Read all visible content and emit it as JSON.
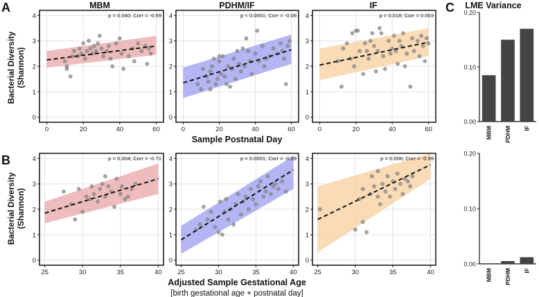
{
  "panel_labels": [
    "A",
    "B",
    "C"
  ],
  "column_titles": [
    "MBM",
    "PDHM/IF",
    "IF"
  ],
  "y_label_lines": [
    "Bacterial Diversity",
    "(Shannon)"
  ],
  "x_label_top": "Sample Postnatal Day",
  "x_label_bottom": "Adjusted Sample Gestational Age",
  "x_label_bottom_sub": "[birth gestational age + postnatal day]",
  "lme_title": "LME Variance",
  "colors": {
    "MBM": "#e8a6a6",
    "PDHM/IF": "#9c9cf0",
    "IF": "#f7cf9d",
    "bar": "#444444",
    "point": "#8a8a8a"
  },
  "chart_data": [
    {
      "type": "scatter",
      "row": "A",
      "group": "MBM",
      "title": "MBM",
      "annotation": "p = 0.040; Corr = -0.59",
      "xlabel": "Sample Postnatal Day",
      "ylabel": "Bacterial Diversity (Shannon)",
      "xlim": [
        -4,
        64
      ],
      "ylim": [
        -0.2,
        4.2
      ],
      "xticks": [
        0,
        20,
        40,
        60
      ],
      "yticks": [
        0,
        1,
        2,
        3,
        4
      ],
      "fit": {
        "x": [
          0,
          60
        ],
        "y": [
          2.25,
          2.8
        ]
      },
      "band": {
        "x": [
          0,
          60
        ],
        "lower": [
          1.95,
          2.45
        ],
        "upper": [
          2.6,
          3.2
        ]
      },
      "points": [
        [
          10,
          2.2
        ],
        [
          11,
          2.0
        ],
        [
          11,
          1.9
        ],
        [
          13,
          1.6
        ],
        [
          14,
          2.4
        ],
        [
          15,
          2.6
        ],
        [
          17,
          2.4
        ],
        [
          18,
          2.7
        ],
        [
          19,
          2.5
        ],
        [
          20,
          2.9
        ],
        [
          21,
          2.3
        ],
        [
          22,
          2.6
        ],
        [
          23,
          3.0
        ],
        [
          24,
          2.7
        ],
        [
          25,
          2.5
        ],
        [
          26,
          2.8
        ],
        [
          27,
          2.6
        ],
        [
          28,
          2.9
        ],
        [
          29,
          3.2
        ],
        [
          30,
          2.7
        ],
        [
          31,
          2.4
        ],
        [
          33,
          2.6
        ],
        [
          34,
          2.8
        ],
        [
          35,
          2.3
        ],
        [
          36,
          2.0
        ],
        [
          38,
          2.9
        ],
        [
          40,
          3.1
        ],
        [
          41,
          2.5
        ],
        [
          42,
          1.9
        ],
        [
          45,
          2.4
        ],
        [
          47,
          2.7
        ],
        [
          48,
          2.2
        ],
        [
          50,
          2.9
        ],
        [
          52,
          2.6
        ],
        [
          54,
          2.8
        ],
        [
          55,
          2.1
        ],
        [
          56,
          2.7
        ],
        [
          57,
          2.5
        ]
      ]
    },
    {
      "type": "scatter",
      "row": "A",
      "group": "PDHM/IF",
      "title": "PDHM/IF",
      "annotation": "p < 0.0001; Corr = -0.06",
      "xlabel": "Sample Postnatal Day",
      "ylabel": "",
      "xlim": [
        -4,
        64
      ],
      "ylim": [
        -0.2,
        4.2
      ],
      "xticks": [
        0,
        20,
        40,
        60
      ],
      "yticks": [
        0,
        1,
        2,
        3,
        4
      ],
      "fit": {
        "x": [
          0,
          60
        ],
        "y": [
          1.35,
          2.65
        ]
      },
      "band": {
        "x": [
          0,
          60
        ],
        "lower": [
          0.75,
          2.1
        ],
        "upper": [
          1.95,
          3.25
        ]
      },
      "points": [
        [
          8,
          1.3
        ],
        [
          10,
          1.1
        ],
        [
          11,
          1.9
        ],
        [
          13,
          1.6
        ],
        [
          14,
          1.4
        ],
        [
          15,
          1.8
        ],
        [
          15,
          1.1
        ],
        [
          16,
          2.0
        ],
        [
          17,
          2.3
        ],
        [
          18,
          1.3
        ],
        [
          19,
          1.5
        ],
        [
          20,
          2.2
        ],
        [
          20,
          2.4
        ],
        [
          21,
          1.7
        ],
        [
          22,
          2.4
        ],
        [
          23,
          1.6
        ],
        [
          24,
          1.3
        ],
        [
          25,
          2.0
        ],
        [
          26,
          1.2
        ],
        [
          27,
          1.9
        ],
        [
          28,
          2.3
        ],
        [
          29,
          1.5
        ],
        [
          30,
          2.6
        ],
        [
          31,
          2.1
        ],
        [
          32,
          1.8
        ],
        [
          33,
          2.7
        ],
        [
          34,
          2.0
        ],
        [
          35,
          3.1
        ],
        [
          36,
          2.6
        ],
        [
          37,
          2.2
        ],
        [
          38,
          1.7
        ],
        [
          40,
          2.5
        ],
        [
          41,
          3.4
        ],
        [
          42,
          2.2
        ],
        [
          44,
          2.8
        ],
        [
          45,
          2.0
        ],
        [
          46,
          2.3
        ],
        [
          48,
          2.4
        ],
        [
          50,
          2.7
        ],
        [
          52,
          2.5
        ],
        [
          54,
          2.9
        ],
        [
          55,
          2.6
        ],
        [
          56,
          2.3
        ],
        [
          57,
          1.3
        ],
        [
          58,
          2.8
        ],
        [
          59,
          3.0
        ]
      ]
    },
    {
      "type": "scatter",
      "row": "A",
      "group": "IF",
      "title": "IF",
      "annotation": "p = 0.018; Corr = 0.003",
      "xlabel": "Sample Postnatal Day",
      "ylabel": "",
      "xlim": [
        -4,
        64
      ],
      "ylim": [
        -0.2,
        4.2
      ],
      "xticks": [
        0,
        20,
        40,
        60
      ],
      "yticks": [
        0,
        1,
        2,
        3,
        4
      ],
      "fit": {
        "x": [
          0,
          60
        ],
        "y": [
          2.05,
          2.95
        ]
      },
      "band": {
        "x": [
          0,
          60
        ],
        "lower": [
          1.45,
          2.4
        ],
        "upper": [
          2.7,
          3.5
        ]
      },
      "points": [
        [
          10,
          2.2
        ],
        [
          12,
          1.2
        ],
        [
          13,
          2.7
        ],
        [
          15,
          2.9
        ],
        [
          17,
          2.3
        ],
        [
          18,
          3.3
        ],
        [
          19,
          2.0
        ],
        [
          20,
          3.4
        ],
        [
          21,
          3.4
        ],
        [
          22,
          2.6
        ],
        [
          24,
          1.7
        ],
        [
          25,
          2.9
        ],
        [
          26,
          2.6
        ],
        [
          27,
          2.3
        ],
        [
          28,
          3.0
        ],
        [
          29,
          3.3
        ],
        [
          30,
          2.8
        ],
        [
          31,
          1.8
        ],
        [
          32,
          2.6
        ],
        [
          33,
          3.5
        ],
        [
          34,
          3.3
        ],
        [
          35,
          2.4
        ],
        [
          36,
          1.9
        ],
        [
          38,
          3.0
        ],
        [
          39,
          2.5
        ],
        [
          40,
          2.7
        ],
        [
          41,
          3.2
        ],
        [
          42,
          2.6
        ],
        [
          43,
          2.1
        ],
        [
          44,
          3.0
        ],
        [
          45,
          2.8
        ],
        [
          46,
          3.3
        ],
        [
          47,
          2.0
        ],
        [
          48,
          2.5
        ],
        [
          50,
          1.2
        ],
        [
          51,
          3.1
        ],
        [
          52,
          2.6
        ],
        [
          54,
          3.0
        ],
        [
          55,
          2.4
        ],
        [
          56,
          3.2
        ],
        [
          57,
          2.8
        ],
        [
          58,
          2.2
        ],
        [
          59,
          3.1
        ],
        [
          60,
          2.9
        ]
      ]
    },
    {
      "type": "scatter",
      "row": "B",
      "group": "MBM",
      "title": "",
      "annotation": "p = 0.004; Corr = -0.71",
      "xlabel": "Adjusted Sample Gestational Age",
      "ylabel": "Bacterial Diversity (Shannon)",
      "xlim": [
        24.3,
        40.7
      ],
      "ylim": [
        -0.2,
        4.2
      ],
      "xticks": [
        25,
        30,
        35,
        40
      ],
      "yticks": [
        0,
        1,
        2,
        3,
        4
      ],
      "fit": {
        "x": [
          25,
          40
        ],
        "y": [
          1.85,
          3.2
        ]
      },
      "band": {
        "x": [
          25,
          40
        ],
        "lower": [
          1.45,
          2.6
        ],
        "upper": [
          2.3,
          3.8
        ]
      },
      "points": [
        [
          27.5,
          2.7
        ],
        [
          28.5,
          2.2
        ],
        [
          29,
          1.6
        ],
        [
          29.5,
          2.8
        ],
        [
          30,
          1.9
        ],
        [
          30.5,
          2.5
        ],
        [
          31,
          2.4
        ],
        [
          31.2,
          2.9
        ],
        [
          31.5,
          2.6
        ],
        [
          32,
          2.3
        ],
        [
          32.3,
          2.8
        ],
        [
          32.6,
          3.0
        ],
        [
          33,
          2.5
        ],
        [
          33,
          3.3
        ],
        [
          33.4,
          2.9
        ],
        [
          33.8,
          2.7
        ],
        [
          34.2,
          2.1
        ],
        [
          34.5,
          3.2
        ],
        [
          35,
          2.6
        ],
        [
          35.2,
          2.9
        ],
        [
          35.6,
          2.4
        ],
        [
          36,
          2.5
        ],
        [
          36.5,
          2.8
        ],
        [
          37,
          3.0
        ]
      ]
    },
    {
      "type": "scatter",
      "row": "B",
      "group": "PDHM/IF",
      "title": "",
      "annotation": "p = 0.0001; Corr = -0.99",
      "xlabel": "Adjusted Sample Gestational Age",
      "ylabel": "",
      "xlim": [
        24.3,
        40.7
      ],
      "ylim": [
        -0.2,
        4.2
      ],
      "xticks": [
        25,
        30,
        35,
        40
      ],
      "yticks": [
        0,
        1,
        2,
        3,
        4
      ],
      "fit": {
        "x": [
          25,
          40
        ],
        "y": [
          0.8,
          3.55
        ]
      },
      "band": {
        "x": [
          25,
          40
        ],
        "lower": [
          0.25,
          2.8
        ],
        "upper": [
          1.35,
          4.1
        ]
      },
      "points": [
        [
          27,
          1.2
        ],
        [
          27.5,
          1.4
        ],
        [
          28,
          2.1
        ],
        [
          28.5,
          1.6
        ],
        [
          29,
          1.9
        ],
        [
          29.5,
          1.3
        ],
        [
          30,
          1.1
        ],
        [
          30.2,
          2.3
        ],
        [
          30.5,
          1.0
        ],
        [
          30.8,
          1.9
        ],
        [
          31,
          2.4
        ],
        [
          31.3,
          1.6
        ],
        [
          31.6,
          2.0
        ],
        [
          32,
          1.4
        ],
        [
          32.3,
          2.2
        ],
        [
          32.6,
          2.6
        ],
        [
          33,
          1.8
        ],
        [
          33.3,
          2.3
        ],
        [
          33.6,
          2.5
        ],
        [
          34,
          2.0
        ],
        [
          34.3,
          2.8
        ],
        [
          34.6,
          2.4
        ],
        [
          35,
          2.2
        ],
        [
          35.3,
          2.9
        ],
        [
          35.6,
          3.1
        ],
        [
          36,
          2.5
        ],
        [
          36.3,
          2.7
        ],
        [
          36.6,
          3.3
        ],
        [
          37,
          2.6
        ],
        [
          37.3,
          2.9
        ],
        [
          37.6,
          3.0
        ],
        [
          38,
          2.8
        ],
        [
          38.5,
          3.1
        ],
        [
          39,
          2.7
        ]
      ]
    },
    {
      "type": "scatter",
      "row": "B",
      "group": "IF",
      "title": "",
      "annotation": "p = 0.006; Corr = -0.99",
      "xlabel": "Adjusted Sample Gestational Age",
      "ylabel": "",
      "xlim": [
        24.3,
        40.7
      ],
      "ylim": [
        -0.2,
        4.2
      ],
      "xticks": [
        25,
        30,
        35,
        40
      ],
      "yticks": [
        0,
        1,
        2,
        3,
        4
      ],
      "fit": {
        "x": [
          25,
          40
        ],
        "y": [
          1.6,
          3.75
        ]
      },
      "band": {
        "x": [
          25,
          40
        ],
        "lower": [
          0.3,
          3.2
        ],
        "upper": [
          2.9,
          4.2
        ]
      },
      "points": [
        [
          25.3,
          2.0
        ],
        [
          30,
          1.2
        ],
        [
          30.5,
          2.4
        ],
        [
          31,
          1.5
        ],
        [
          31,
          2.8
        ],
        [
          31.5,
          1.1
        ],
        [
          32,
          2.6
        ],
        [
          32.2,
          3.3
        ],
        [
          32.5,
          2.9
        ],
        [
          33,
          2.5
        ],
        [
          33,
          3.5
        ],
        [
          33.3,
          2.2
        ],
        [
          33.6,
          3.0
        ],
        [
          34,
          2.7
        ],
        [
          34.3,
          3.3
        ],
        [
          34.6,
          2.5
        ],
        [
          35,
          3.1
        ],
        [
          35.3,
          2.8
        ],
        [
          35.6,
          3.4
        ],
        [
          36,
          3.0
        ],
        [
          36.3,
          2.6
        ],
        [
          36.6,
          3.2
        ],
        [
          37,
          3.1
        ],
        [
          37.3,
          2.9
        ],
        [
          37.6,
          3.3
        ]
      ]
    },
    {
      "type": "bar",
      "row": "C-top",
      "title": "LME Variance",
      "categories": [
        "MBM",
        "PDHM",
        "IF"
      ],
      "values": [
        0.085,
        0.15,
        0.17
      ],
      "ylim": [
        0,
        0.2
      ],
      "yticks": [
        0,
        0.1,
        0.2
      ],
      "ytick_labels": [
        "0.00",
        "0.10",
        "0.20"
      ]
    },
    {
      "type": "bar",
      "row": "C-bottom",
      "title": "",
      "categories": [
        "MBM",
        "PDHM",
        "IF"
      ],
      "values": [
        0.001,
        0.005,
        0.012
      ],
      "ylim": [
        0,
        0.2
      ],
      "yticks": [
        0,
        0.1,
        0.2
      ],
      "ytick_labels": [
        "0.00",
        "0.10",
        "0.20"
      ]
    }
  ]
}
